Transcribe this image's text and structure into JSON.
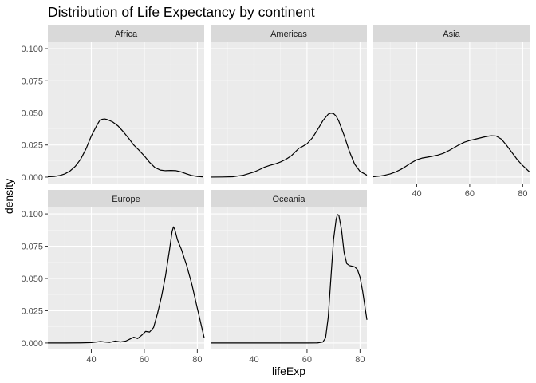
{
  "chart_data": {
    "type": "line",
    "title": "Distribution of Life Expectancy by continent",
    "xlabel": "lifeExp",
    "ylabel": "density",
    "xlim": [
      23.6,
      82.6
    ],
    "ylim": [
      -0.005,
      0.105
    ],
    "x_ticks": [
      40,
      60,
      80
    ],
    "y_ticks": [
      0,
      0.025,
      0.05,
      0.075,
      0.1
    ],
    "y_tick_labels": [
      "0.000",
      "0.025",
      "0.050",
      "0.075",
      "0.100"
    ],
    "grid": true,
    "panels": [
      {
        "name": "Africa",
        "x": [
          23.6,
          26,
          28,
          30,
          32,
          34,
          36,
          38,
          40,
          42,
          43,
          44,
          45,
          46,
          48,
          50,
          52,
          54,
          56,
          58,
          60,
          62,
          64,
          66,
          68,
          70,
          72,
          74,
          76,
          78,
          80,
          82
        ],
        "y": [
          0.0003,
          0.0005,
          0.0012,
          0.0025,
          0.0048,
          0.0085,
          0.014,
          0.022,
          0.032,
          0.04,
          0.0435,
          0.045,
          0.0453,
          0.0448,
          0.043,
          0.04,
          0.0355,
          0.0305,
          0.025,
          0.021,
          0.0165,
          0.0115,
          0.0075,
          0.0055,
          0.005,
          0.0052,
          0.005,
          0.004,
          0.0025,
          0.0012,
          0.0005,
          0.0002
        ]
      },
      {
        "name": "Americas",
        "x": [
          23.6,
          28,
          32,
          36,
          40,
          42,
          44,
          46,
          48,
          50,
          52,
          54,
          56,
          57,
          58,
          60,
          62,
          64,
          66,
          68,
          69,
          70,
          71,
          72,
          74,
          76,
          78,
          80,
          82.6
        ],
        "y": [
          0.0,
          0.0001,
          0.0003,
          0.0015,
          0.004,
          0.0058,
          0.0078,
          0.0092,
          0.0103,
          0.0118,
          0.0138,
          0.0165,
          0.0205,
          0.0225,
          0.0235,
          0.026,
          0.0305,
          0.037,
          0.044,
          0.049,
          0.0498,
          0.0495,
          0.0475,
          0.0435,
          0.0325,
          0.02,
          0.01,
          0.0045,
          0.0015
        ]
      },
      {
        "name": "Asia",
        "x": [
          23.6,
          26,
          28,
          30,
          32,
          34,
          36,
          38,
          40,
          42,
          44,
          46,
          48,
          50,
          52,
          54,
          56,
          58,
          60,
          62,
          64,
          66,
          68,
          70,
          72,
          74,
          76,
          78,
          80,
          82.6
        ],
        "y": [
          0.0003,
          0.0008,
          0.0015,
          0.0025,
          0.004,
          0.006,
          0.0085,
          0.0112,
          0.0135,
          0.0148,
          0.0155,
          0.0163,
          0.0172,
          0.0185,
          0.0205,
          0.0228,
          0.0252,
          0.0272,
          0.0285,
          0.0295,
          0.0305,
          0.0315,
          0.0322,
          0.032,
          0.0295,
          0.0245,
          0.019,
          0.0135,
          0.009,
          0.004
        ]
      },
      {
        "name": "Europe",
        "x": [
          23.6,
          30,
          36,
          40,
          42,
          43.5,
          45,
          47,
          49,
          51,
          53,
          54.5,
          56,
          57.5,
          59,
          60.5,
          62,
          63.5,
          65,
          66.5,
          68,
          69.5,
          70.5,
          71,
          71.5,
          72.5,
          74,
          76,
          78,
          80,
          82.6
        ],
        "y": [
          0.0,
          0.0,
          0.0001,
          0.0003,
          0.0008,
          0.0012,
          0.0008,
          0.0005,
          0.0015,
          0.0008,
          0.0015,
          0.003,
          0.0045,
          0.0035,
          0.006,
          0.009,
          0.0085,
          0.012,
          0.023,
          0.036,
          0.052,
          0.072,
          0.0865,
          0.09,
          0.088,
          0.08,
          0.0725,
          0.06,
          0.045,
          0.027,
          0.004
        ]
      },
      {
        "name": "Oceania",
        "x": [
          23.6,
          40,
          60,
          64,
          66,
          67,
          68,
          69,
          70,
          71,
          71.5,
          72,
          73,
          74,
          75,
          76,
          77,
          78,
          79,
          80,
          81,
          82.6
        ],
        "y": [
          0.0,
          0.0,
          0.0,
          0.0001,
          0.0008,
          0.004,
          0.02,
          0.05,
          0.08,
          0.096,
          0.0995,
          0.099,
          0.088,
          0.07,
          0.0615,
          0.06,
          0.0595,
          0.059,
          0.057,
          0.051,
          0.04,
          0.018
        ]
      }
    ]
  }
}
